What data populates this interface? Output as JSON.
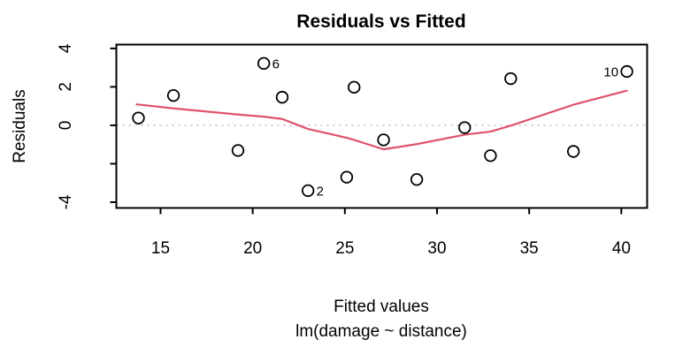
{
  "chart_data": {
    "type": "scatter",
    "title": "Residuals vs Fitted",
    "xlabel": "Fitted values",
    "sublabel": "lm(damage ~ distance)",
    "ylabel": "Residuals",
    "xlim": [
      12.6,
      41.4
    ],
    "ylim": [
      -4.3,
      4.2
    ],
    "grid": false,
    "legend": "none",
    "x_ticks": [
      {
        "value": 15,
        "label": "15"
      },
      {
        "value": 20,
        "label": "20"
      },
      {
        "value": 25,
        "label": "25"
      },
      {
        "value": 30,
        "label": "30"
      },
      {
        "value": 35,
        "label": "35"
      },
      {
        "value": 40,
        "label": "40"
      }
    ],
    "y_ticks": [
      {
        "value": 4,
        "label": "4"
      },
      {
        "value": 2,
        "label": "2"
      },
      {
        "value": 0,
        "label": "0"
      },
      {
        "value": -2,
        "label": ""
      },
      {
        "value": -4,
        "label": "-4"
      }
    ],
    "zero_line": {
      "value": 0,
      "style": "dotted",
      "color": "#BEBEBE"
    },
    "point_style": {
      "shape": "open-circle",
      "stroke": "#000000",
      "radius_px": 6.3
    },
    "points": [
      {
        "fitted": 13.8,
        "residual": 0.38
      },
      {
        "fitted": 15.7,
        "residual": 1.55
      },
      {
        "fitted": 19.2,
        "residual": -1.31
      },
      {
        "fitted": 20.6,
        "residual": 3.22,
        "label": "6",
        "label_side": "right"
      },
      {
        "fitted": 21.6,
        "residual": 1.46
      },
      {
        "fitted": 23.0,
        "residual": -3.4,
        "label": "2",
        "label_side": "right"
      },
      {
        "fitted": 25.1,
        "residual": -2.7
      },
      {
        "fitted": 25.5,
        "residual": 1.98
      },
      {
        "fitted": 27.1,
        "residual": -0.76
      },
      {
        "fitted": 28.9,
        "residual": -2.82
      },
      {
        "fitted": 31.5,
        "residual": -0.12
      },
      {
        "fitted": 32.9,
        "residual": -1.58
      },
      {
        "fitted": 34.0,
        "residual": 2.43
      },
      {
        "fitted": 37.4,
        "residual": -1.36
      },
      {
        "fitted": 40.3,
        "residual": 2.8,
        "label": "10",
        "label_side": "left"
      }
    ],
    "smooth_line": {
      "name": "lowess-smooth",
      "color": "#DF536B",
      "points": [
        [
          13.7,
          1.09
        ],
        [
          15.7,
          0.88
        ],
        [
          19.2,
          0.56
        ],
        [
          20.6,
          0.45
        ],
        [
          21.6,
          0.33
        ],
        [
          23.0,
          -0.19
        ],
        [
          25.1,
          -0.65
        ],
        [
          25.5,
          -0.76
        ],
        [
          27.1,
          -1.25
        ],
        [
          28.9,
          -0.98
        ],
        [
          31.5,
          -0.49
        ],
        [
          32.9,
          -0.33
        ],
        [
          34.0,
          -0.02
        ],
        [
          37.4,
          1.07
        ],
        [
          40.3,
          1.8
        ]
      ]
    }
  },
  "colors": {
    "background": "#FFFFFF",
    "axis": "#000000",
    "smooth": "#DF536B",
    "zero_line": "#BEBEBE"
  }
}
